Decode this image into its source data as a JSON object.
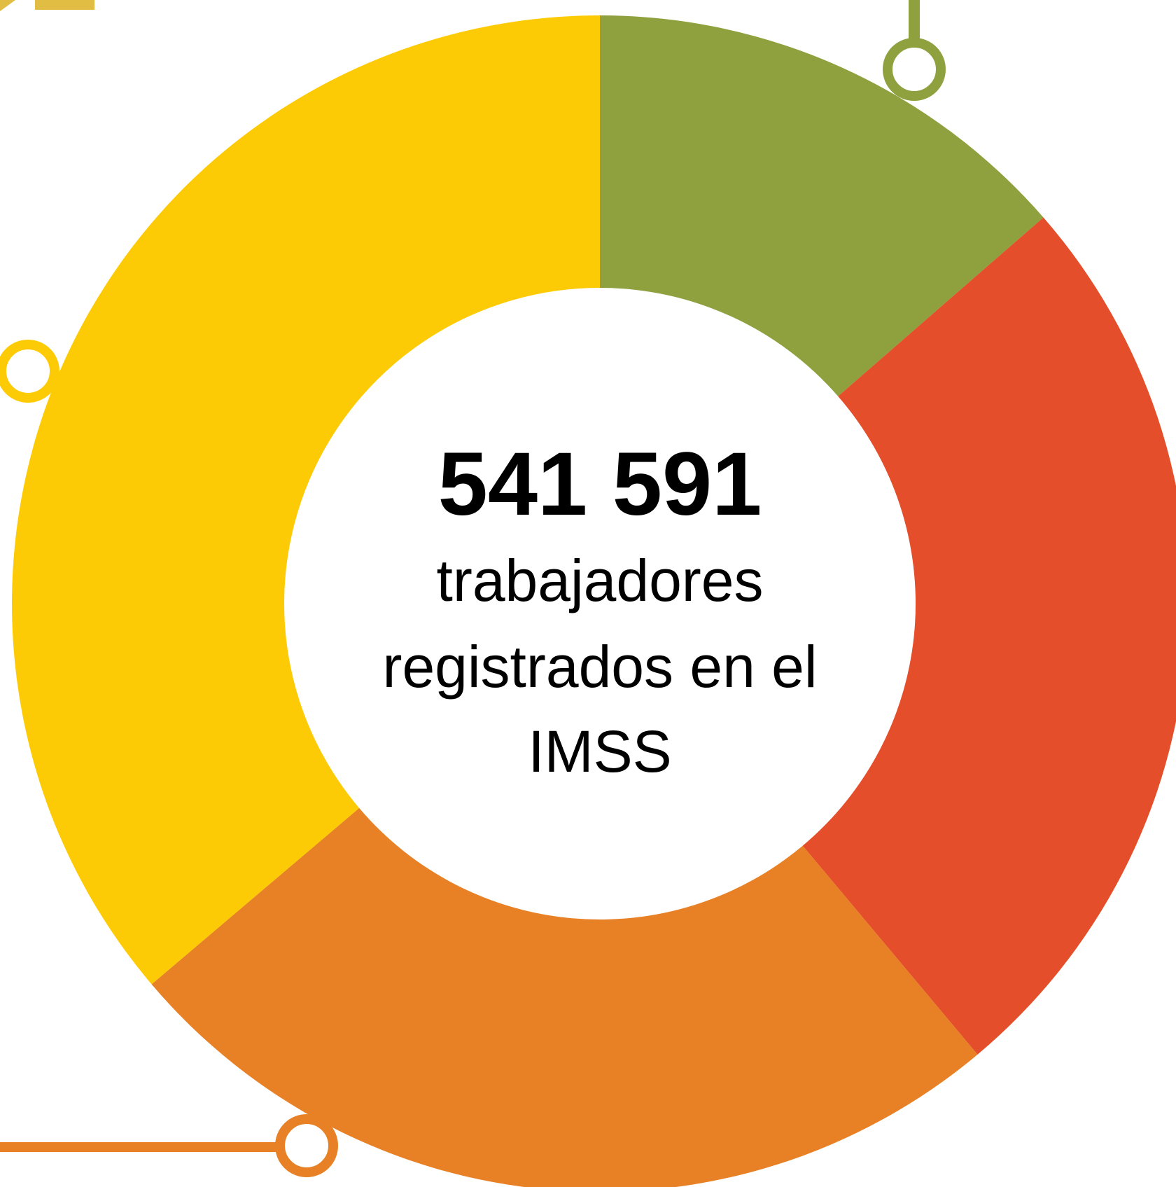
{
  "chart_data": {
    "type": "donut",
    "series": [
      {
        "name": null,
        "color": "#8fa13f",
        "values": [
          13.6
        ]
      },
      {
        "name": null,
        "color": "#e54e2a",
        "values": [
          25.3
        ]
      },
      {
        "name": null,
        "color": "#e88025",
        "values": [
          24.9
        ]
      },
      {
        "name": null,
        "color": "#fdcb05",
        "values": [
          36.2
        ]
      }
    ],
    "center_value": "541 591",
    "center_lines": [
      "trabajadores",
      "registrados en el",
      "IMSS"
    ]
  }
}
